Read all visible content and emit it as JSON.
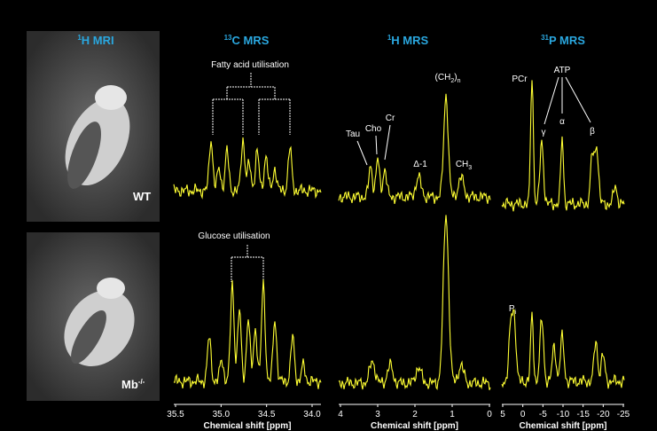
{
  "columns": [
    {
      "sup": "1",
      "text": "H MRI"
    },
    {
      "sup": "13",
      "text": "C MRS"
    },
    {
      "sup": "1",
      "text": "H MRS"
    },
    {
      "sup": "31",
      "text": "P MRS"
    }
  ],
  "rows": [
    {
      "name": "WT"
    },
    {
      "name": "Mb",
      "sup": "-/-"
    }
  ],
  "annotations": {
    "fatty_acid": "Fatty acid utilisation",
    "glucose": "Glucose utilisation",
    "tau": "Tau",
    "cho": "Cho",
    "cr": "Cr",
    "delta": "Δ-1",
    "ch2": {
      "a": "(CH",
      "sub": "2",
      "b": ")",
      "sub2": "n"
    },
    "ch3": {
      "a": "CH",
      "sub": "3"
    },
    "pcr": "PCr",
    "atp": "ATP",
    "gamma": "γ",
    "alpha": "α",
    "beta": "β",
    "pi": {
      "a": "P",
      "sub": "i"
    }
  },
  "axes": [
    {
      "ticks": [
        "35.5",
        "35.0",
        "34.5",
        "34.0"
      ],
      "label": "Chemical shift [ppm]"
    },
    {
      "ticks": [
        "4",
        "3",
        "2",
        "1",
        "0"
      ],
      "label": "Chemical shift [ppm]"
    },
    {
      "ticks": [
        "5",
        "0",
        "-5",
        "-10",
        "-15",
        "-20",
        "-25"
      ],
      "label": "Chemical shift [ppm]"
    }
  ]
}
